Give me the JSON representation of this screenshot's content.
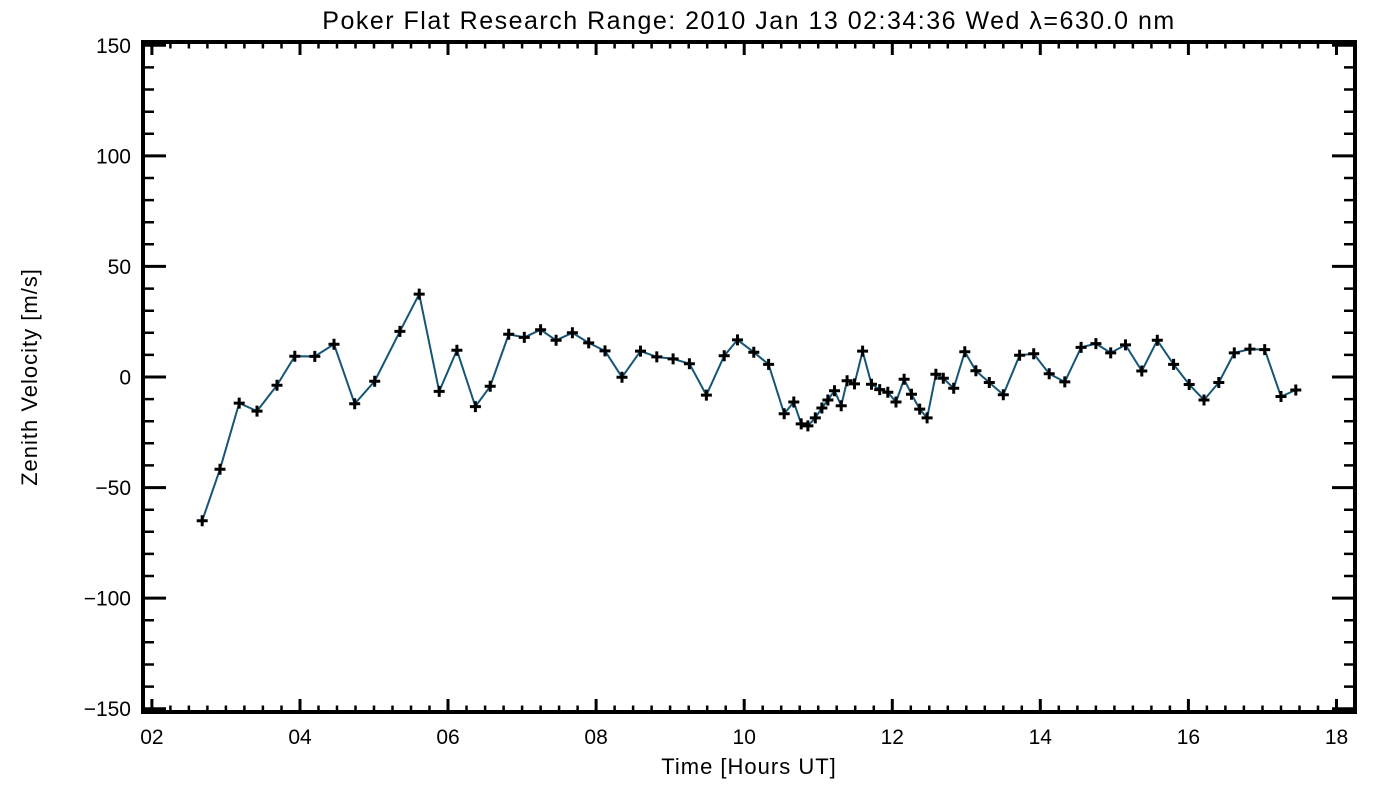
{
  "chart_data": {
    "type": "line",
    "title": "Poker Flat Research Range: 2010 Jan 13 02:34:36 Wed λ=630.0 nm",
    "xlabel": "Time [Hours UT]",
    "ylabel": "Zenith Velocity [m/s]",
    "xlim": [
      1.88,
      18.25
    ],
    "ylim": [
      -151.5,
      151.5
    ],
    "x_major_ticks": [
      2,
      4,
      6,
      8,
      10,
      12,
      14,
      16,
      18
    ],
    "x_tick_labels": [
      "02",
      "04",
      "06",
      "08",
      "10",
      "12",
      "14",
      "16",
      "18"
    ],
    "x_minor_step": 0.25,
    "y_major_ticks": [
      -150,
      -100,
      -50,
      0,
      50,
      100,
      150
    ],
    "y_tick_labels": [
      "−150",
      "−100",
      "−50",
      "0",
      "50",
      "100",
      "150"
    ],
    "y_minor_step": 10,
    "grid": false,
    "legend": null,
    "line_color": "#155575",
    "marker": "plus",
    "marker_color": "#000000",
    "axis_color": "#000000",
    "series": [
      {
        "name": "zenith_velocity",
        "points": [
          [
            2.68,
            -65.0
          ],
          [
            2.92,
            -41.7
          ],
          [
            3.18,
            -11.8
          ],
          [
            3.42,
            -15.4
          ],
          [
            3.69,
            -3.7
          ],
          [
            3.93,
            9.4
          ],
          [
            4.2,
            9.3
          ],
          [
            4.46,
            14.8
          ],
          [
            4.74,
            -12.1
          ],
          [
            5.01,
            -1.9
          ],
          [
            5.35,
            20.6
          ],
          [
            5.61,
            37.5
          ],
          [
            5.88,
            -6.5
          ],
          [
            6.12,
            12.1
          ],
          [
            6.37,
            -13.4
          ],
          [
            6.57,
            -4.2
          ],
          [
            6.82,
            19.3
          ],
          [
            7.03,
            17.9
          ],
          [
            7.25,
            21.4
          ],
          [
            7.46,
            16.6
          ],
          [
            7.68,
            20.0
          ],
          [
            7.9,
            15.4
          ],
          [
            8.12,
            11.8
          ],
          [
            8.35,
            -0.1
          ],
          [
            8.6,
            11.7
          ],
          [
            8.82,
            9.1
          ],
          [
            9.04,
            8.2
          ],
          [
            9.26,
            6.0
          ],
          [
            9.49,
            -8.2
          ],
          [
            9.73,
            9.6
          ],
          [
            9.91,
            16.8
          ],
          [
            10.13,
            11.2
          ],
          [
            10.33,
            5.7
          ],
          [
            10.54,
            -16.6
          ],
          [
            10.67,
            -11.3
          ],
          [
            10.77,
            -21.2
          ],
          [
            10.86,
            -22.1
          ],
          [
            10.96,
            -18.5
          ],
          [
            11.05,
            -14.0
          ],
          [
            11.13,
            -10.4
          ],
          [
            11.22,
            -6.2
          ],
          [
            11.31,
            -13.0
          ],
          [
            11.39,
            -1.7
          ],
          [
            11.49,
            -3.1
          ],
          [
            11.6,
            11.7
          ],
          [
            11.72,
            -3.3
          ],
          [
            11.83,
            -5.7
          ],
          [
            11.94,
            -6.9
          ],
          [
            12.05,
            -11.3
          ],
          [
            12.16,
            -1.0
          ],
          [
            12.26,
            -7.8
          ],
          [
            12.37,
            -14.5
          ],
          [
            12.47,
            -18.5
          ],
          [
            12.59,
            1.2
          ],
          [
            12.69,
            -0.6
          ],
          [
            12.83,
            -5.1
          ],
          [
            12.98,
            11.4
          ],
          [
            13.13,
            2.8
          ],
          [
            13.31,
            -2.5
          ],
          [
            13.5,
            -8.0
          ],
          [
            13.72,
            9.8
          ],
          [
            13.91,
            10.5
          ],
          [
            14.12,
            1.5
          ],
          [
            14.33,
            -2.2
          ],
          [
            14.55,
            13.4
          ],
          [
            14.75,
            15.1
          ],
          [
            14.95,
            10.9
          ],
          [
            15.15,
            14.5
          ],
          [
            15.37,
            2.7
          ],
          [
            15.58,
            16.6
          ],
          [
            15.8,
            5.7
          ],
          [
            16.01,
            -3.4
          ],
          [
            16.21,
            -10.4
          ],
          [
            16.41,
            -2.5
          ],
          [
            16.62,
            10.9
          ],
          [
            16.83,
            12.6
          ],
          [
            17.03,
            12.4
          ],
          [
            17.25,
            -8.8
          ],
          [
            17.45,
            -5.9
          ]
        ]
      }
    ]
  }
}
